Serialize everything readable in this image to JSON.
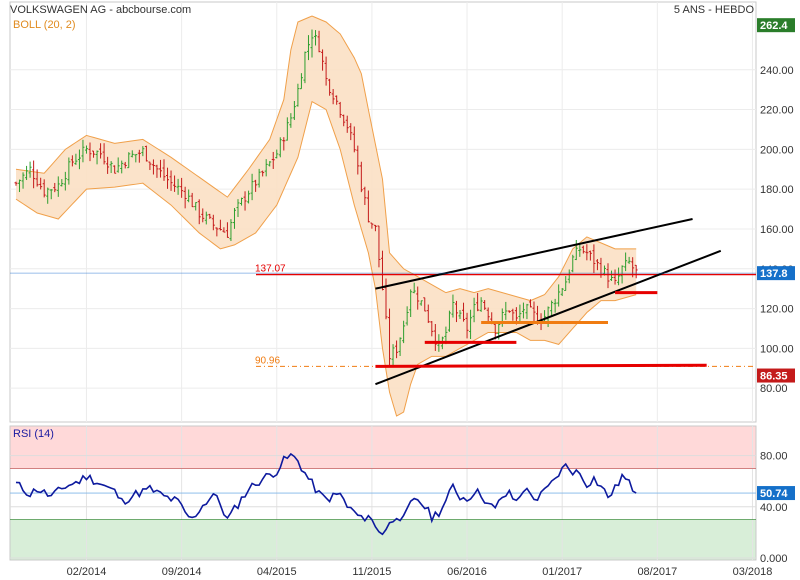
{
  "header": {
    "title": "VOLKSWAGEN AG - abcbourse.com",
    "period": "5 ANS - HEBDO",
    "boll_label": "BOLL (20, 2)",
    "rsi_label": "RSI (14)"
  },
  "colors": {
    "candle_up": "#2e9e2e",
    "candle_down": "#c41a1a",
    "boll_fill": "#fbe0c4",
    "boll_line": "#f0a04a",
    "rsi_line": "#0d1a9e",
    "rsi_overbought": "#ffd9d9",
    "rsi_oversold": "#d8eed8",
    "last_price": "#1f6fd1",
    "level_red": "#e60000",
    "level_orange": "#f07c12",
    "badge_green": "#2a7d2a",
    "badge_blue": "#1570c9",
    "badge_red": "#c41a1a"
  },
  "chart_data": [
    {
      "type": "candlestick",
      "title": "",
      "subtitle": "BOLL (20, 2)",
      "ylim": [
        63,
        265
      ],
      "yticks": [
        "80.00",
        "100.00",
        "120.00",
        "140.00",
        "160.00",
        "180.00",
        "200.00",
        "220.00",
        "240.00"
      ],
      "ytick_values": [
        80,
        100,
        120,
        140,
        160,
        180,
        200,
        220,
        240
      ],
      "xticks": [
        "02/2014",
        "09/2014",
        "04/2015",
        "11/2015",
        "06/2016",
        "01/2017",
        "08/2017",
        "03/2018"
      ],
      "price_anchors": [
        [
          0,
          183
        ],
        [
          4,
          190
        ],
        [
          8,
          179
        ],
        [
          12,
          182
        ],
        [
          16,
          194
        ],
        [
          20,
          200
        ],
        [
          24,
          198
        ],
        [
          28,
          190
        ],
        [
          32,
          196
        ],
        [
          36,
          199
        ],
        [
          40,
          190
        ],
        [
          44,
          183
        ],
        [
          48,
          178
        ],
        [
          52,
          168
        ],
        [
          56,
          162
        ],
        [
          60,
          158
        ],
        [
          62,
          168
        ],
        [
          66,
          179
        ],
        [
          70,
          188
        ],
        [
          74,
          198
        ],
        [
          78,
          216
        ],
        [
          80,
          230
        ],
        [
          82,
          248
        ],
        [
          84,
          258
        ],
        [
          86,
          252
        ],
        [
          88,
          235
        ],
        [
          90,
          228
        ],
        [
          92,
          220
        ],
        [
          94,
          212
        ],
        [
          96,
          200
        ],
        [
          98,
          182
        ],
        [
          100,
          166
        ],
        [
          102,
          160
        ],
        [
          104,
          130
        ],
        [
          106,
          96
        ],
        [
          108,
          100
        ],
        [
          110,
          112
        ],
        [
          112,
          130
        ],
        [
          114,
          126
        ],
        [
          116,
          120
        ],
        [
          118,
          110
        ],
        [
          120,
          100
        ],
        [
          122,
          108
        ],
        [
          124,
          122
        ],
        [
          126,
          115
        ],
        [
          128,
          110
        ],
        [
          130,
          120
        ],
        [
          132,
          124
        ],
        [
          134,
          118
        ],
        [
          136,
          110
        ],
        [
          138,
          116
        ],
        [
          140,
          120
        ],
        [
          142,
          114
        ],
        [
          144,
          120
        ],
        [
          146,
          118
        ],
        [
          148,
          115
        ],
        [
          150,
          116
        ],
        [
          152,
          122
        ],
        [
          154,
          128
        ],
        [
          156,
          134
        ],
        [
          158,
          145
        ],
        [
          160,
          150
        ],
        [
          162,
          148
        ],
        [
          164,
          144
        ],
        [
          166,
          140
        ],
        [
          168,
          136
        ],
        [
          170,
          132
        ],
        [
          172,
          140
        ],
        [
          174,
          143
        ],
        [
          176,
          138
        ]
      ],
      "boll_upper_anchors": [
        [
          0,
          190
        ],
        [
          8,
          188
        ],
        [
          14,
          200
        ],
        [
          20,
          207
        ],
        [
          28,
          203
        ],
        [
          36,
          205
        ],
        [
          44,
          196
        ],
        [
          52,
          186
        ],
        [
          60,
          176
        ],
        [
          66,
          190
        ],
        [
          72,
          205
        ],
        [
          76,
          225
        ],
        [
          78,
          250
        ],
        [
          80,
          264
        ],
        [
          84,
          267
        ],
        [
          88,
          264
        ],
        [
          92,
          258
        ],
        [
          96,
          246
        ],
        [
          98,
          238
        ],
        [
          100,
          220
        ],
        [
          104,
          185
        ],
        [
          106,
          148
        ],
        [
          110,
          140
        ],
        [
          114,
          136
        ],
        [
          118,
          132
        ],
        [
          122,
          128
        ],
        [
          126,
          130
        ],
        [
          130,
          128
        ],
        [
          134,
          130
        ],
        [
          138,
          128
        ],
        [
          142,
          126
        ],
        [
          146,
          124
        ],
        [
          150,
          127
        ],
        [
          154,
          136
        ],
        [
          158,
          150
        ],
        [
          162,
          156
        ],
        [
          166,
          153
        ],
        [
          170,
          150
        ],
        [
          176,
          150
        ]
      ],
      "boll_lower_anchors": [
        [
          0,
          175
        ],
        [
          6,
          168
        ],
        [
          12,
          165
        ],
        [
          20,
          180
        ],
        [
          28,
          181
        ],
        [
          36,
          183
        ],
        [
          44,
          172
        ],
        [
          52,
          158
        ],
        [
          58,
          150
        ],
        [
          62,
          152
        ],
        [
          68,
          158
        ],
        [
          74,
          172
        ],
        [
          80,
          196
        ],
        [
          84,
          224
        ],
        [
          88,
          220
        ],
        [
          92,
          200
        ],
        [
          96,
          172
        ],
        [
          100,
          148
        ],
        [
          102,
          130
        ],
        [
          104,
          100
        ],
        [
          106,
          78
        ],
        [
          108,
          66
        ],
        [
          110,
          68
        ],
        [
          112,
          82
        ],
        [
          114,
          92
        ],
        [
          118,
          96
        ],
        [
          122,
          96
        ],
        [
          126,
          100
        ],
        [
          130,
          104
        ],
        [
          134,
          108
        ],
        [
          138,
          108
        ],
        [
          142,
          108
        ],
        [
          146,
          104
        ],
        [
          150,
          104
        ],
        [
          154,
          102
        ],
        [
          158,
          110
        ],
        [
          162,
          118
        ],
        [
          166,
          124
        ],
        [
          170,
          124
        ],
        [
          176,
          127
        ]
      ],
      "levels": [
        {
          "label": "137.07",
          "value": 137.07,
          "style": "solid",
          "color_key": "level_red"
        },
        {
          "label": "90.96",
          "value": 90.96,
          "style": "dashdot",
          "color_key": "level_orange"
        }
      ],
      "trend_segments": [
        {
          "from": [
            102,
            130
          ],
          "to": [
            192,
            165
          ],
          "color_key": "black"
        },
        {
          "from": [
            102,
            82
          ],
          "to": [
            200,
            149
          ],
          "color_key": "black"
        },
        {
          "from": [
            102,
            90.96
          ],
          "to": [
            196,
            91.5
          ],
          "color_key": "level_red"
        },
        {
          "from": [
            170,
            128
          ],
          "to": [
            182,
            128
          ],
          "color_key": "level_red"
        },
        {
          "from": [
            132,
            113
          ],
          "to": [
            168,
            113
          ],
          "color_key": "level_orange"
        },
        {
          "from": [
            116,
            103
          ],
          "to": [
            142,
            103
          ],
          "color_key": "level_red"
        }
      ],
      "badges": [
        {
          "label": "262.4",
          "value": 262.4,
          "color_key": "badge_green"
        },
        {
          "label": "137.8",
          "value": 137.8,
          "color_key": "badge_blue"
        },
        {
          "label": "86.35",
          "value": 86.35,
          "color_key": "badge_red"
        }
      ],
      "last_value": 137.8
    },
    {
      "type": "line",
      "title": "",
      "subtitle": "RSI (14)",
      "ylim": [
        0,
        100
      ],
      "yticks": [
        "80.00",
        "40.00",
        "0.000"
      ],
      "ytick_values": [
        80,
        40,
        0
      ],
      "overbought": 70,
      "oversold": 30,
      "rsi_anchors": [
        [
          0,
          58
        ],
        [
          4,
          50
        ],
        [
          6,
          54
        ],
        [
          10,
          48
        ],
        [
          14,
          56
        ],
        [
          18,
          60
        ],
        [
          20,
          64
        ],
        [
          24,
          58
        ],
        [
          28,
          52
        ],
        [
          30,
          44
        ],
        [
          34,
          50
        ],
        [
          38,
          54
        ],
        [
          42,
          48
        ],
        [
          46,
          44
        ],
        [
          48,
          35
        ],
        [
          50,
          30
        ],
        [
          52,
          38
        ],
        [
          56,
          50
        ],
        [
          58,
          42
        ],
        [
          60,
          30
        ],
        [
          62,
          38
        ],
        [
          66,
          54
        ],
        [
          70,
          62
        ],
        [
          74,
          68
        ],
        [
          76,
          76
        ],
        [
          78,
          80
        ],
        [
          80,
          76
        ],
        [
          82,
          66
        ],
        [
          84,
          58
        ],
        [
          86,
          50
        ],
        [
          88,
          46
        ],
        [
          92,
          50
        ],
        [
          94,
          40
        ],
        [
          96,
          36
        ],
        [
          98,
          30
        ],
        [
          100,
          34
        ],
        [
          102,
          24
        ],
        [
          104,
          20
        ],
        [
          106,
          26
        ],
        [
          108,
          34
        ],
        [
          110,
          30
        ],
        [
          112,
          42
        ],
        [
          114,
          46
        ],
        [
          116,
          40
        ],
        [
          118,
          32
        ],
        [
          120,
          36
        ],
        [
          122,
          44
        ],
        [
          124,
          56
        ],
        [
          126,
          48
        ],
        [
          128,
          46
        ],
        [
          130,
          52
        ],
        [
          132,
          50
        ],
        [
          134,
          42
        ],
        [
          136,
          38
        ],
        [
          138,
          48
        ],
        [
          140,
          50
        ],
        [
          142,
          44
        ],
        [
          144,
          54
        ],
        [
          146,
          50
        ],
        [
          148,
          46
        ],
        [
          150,
          52
        ],
        [
          152,
          58
        ],
        [
          154,
          66
        ],
        [
          156,
          72
        ],
        [
          158,
          68
        ],
        [
          160,
          66
        ],
        [
          162,
          58
        ],
        [
          164,
          62
        ],
        [
          166,
          56
        ],
        [
          168,
          48
        ],
        [
          170,
          54
        ],
        [
          172,
          64
        ],
        [
          174,
          58
        ],
        [
          176,
          51
        ]
      ],
      "badges": [
        {
          "label": "50.74",
          "value": 50.74,
          "color_key": "badge_blue"
        }
      ],
      "last_value": 50.74
    }
  ]
}
